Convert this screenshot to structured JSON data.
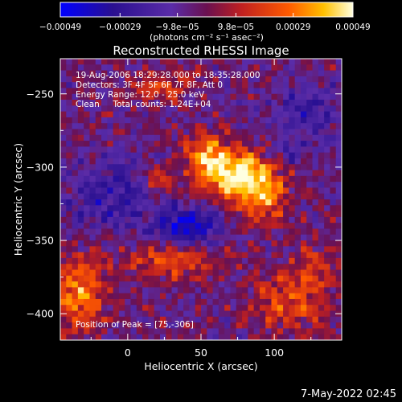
{
  "chart_data": {
    "type": "heatmap",
    "title": "Reconstructed RHESSI Image",
    "xlabel": "Heliocentric X (arcsec)",
    "ylabel": "Heliocentric Y (arcsec)",
    "xlim": [
      -46,
      146
    ],
    "ylim": [
      -418,
      -226
    ],
    "x_ticks": [
      0,
      50,
      100
    ],
    "y_ticks": [
      -250,
      -300,
      -350,
      -400
    ],
    "colorbar": {
      "units": "(photons cm⁻² s⁻¹ asec⁻²)",
      "range": [
        -0.00049,
        0.00049
      ],
      "tick_values": [
        -0.00049,
        -0.00029,
        -9.8e-05,
        9.8e-05,
        0.00029,
        0.00049
      ],
      "tick_labels": [
        "−0.00049",
        "−0.00029",
        "−9.8e−05",
        "9.8e−05",
        "0.00029",
        "0.00049"
      ],
      "colors": [
        "#0000ff",
        "#3a1080",
        "#5a2ca8",
        "#c02a2a",
        "#ff5500",
        "#ffcc00",
        "#ffffe0"
      ]
    },
    "annotations": [
      "19-Aug-2006 18:29:28.000 to 18:35:28.000",
      "Detectors: 3F 4F 5F 6F 7F 8F, Att 0",
      "Energy Range: 12.0 - 25.0 keV",
      "Clean     Total counts: 1.24E+04",
      "Position of Peak = [75,-306]"
    ],
    "peak": {
      "x": 75,
      "y": -306
    },
    "image_grid_cells": [
      48,
      48
    ],
    "source_regions": [
      {
        "x": 75,
        "y": -306,
        "sx": 18,
        "sy": 12,
        "amp": 0.00049
      },
      {
        "x": 55,
        "y": -292,
        "sx": 12,
        "sy": 9,
        "amp": 0.00034
      },
      {
        "x": 92,
        "y": -322,
        "sx": 12,
        "sy": 14,
        "amp": 0.00028
      },
      {
        "x": -34,
        "y": -386,
        "sx": 14,
        "sy": 18,
        "amp": 0.00036
      },
      {
        "x": 32,
        "y": -362,
        "sx": 22,
        "sy": 9,
        "amp": 0.0003
      },
      {
        "x": 110,
        "y": -392,
        "sx": 18,
        "sy": 14,
        "amp": 0.00025
      },
      {
        "x": 24,
        "y": -244,
        "sx": 16,
        "sy": 8,
        "amp": 0.00022
      },
      {
        "x": 20,
        "y": -308,
        "sx": 6,
        "sy": 6,
        "amp": 0.00027
      },
      {
        "x": 128,
        "y": -368,
        "sx": 10,
        "sy": 10,
        "amp": 0.0002
      },
      {
        "x": 40,
        "y": -342,
        "sx": 16,
        "sy": 10,
        "amp": -0.0004
      },
      {
        "x": -12,
        "y": -320,
        "sx": 20,
        "sy": 18,
        "amp": -0.00022
      },
      {
        "x": 120,
        "y": -262,
        "sx": 18,
        "sy": 14,
        "amp": -0.00018
      },
      {
        "x": 110,
        "y": -292,
        "sx": 10,
        "sy": 8,
        "amp": -0.00014
      }
    ]
  },
  "footer": {
    "timestamp": "7-May-2022 02:45"
  }
}
